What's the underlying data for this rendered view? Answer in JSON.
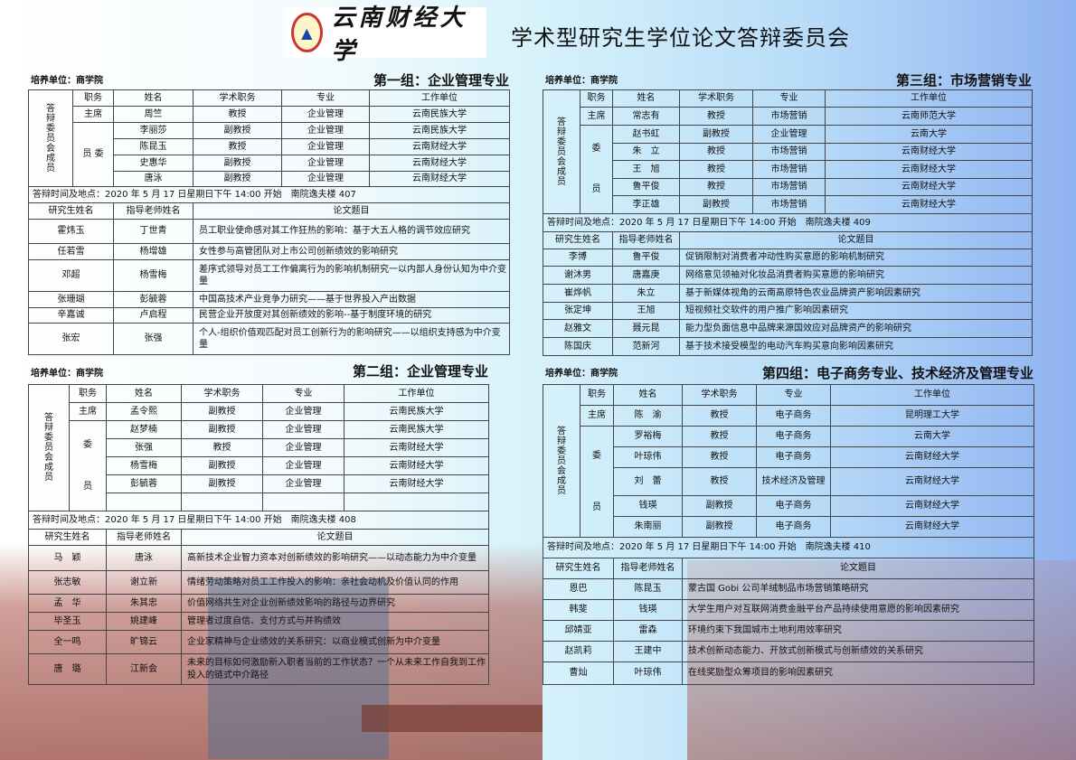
{
  "header": {
    "logo_text": "云南财经大学",
    "title": "学术型研究生学位论文答辩委员会"
  },
  "colors": {
    "seal": "#cc3333",
    "background_left": "#ffffff",
    "background_right": "#8fb2f0"
  },
  "committee_label": "答辩委员会成员",
  "columns": {
    "role": "职务",
    "name": "姓名",
    "rank": "学术职务",
    "major": "专业",
    "org": "工作单位",
    "student": "研究生姓名",
    "advisor": "指导老师姓名",
    "thesis": "论文题目"
  },
  "groups": [
    {
      "unit": "培养单位：商学院",
      "title": "第一组：企业管理专业",
      "member_label": "员 委",
      "chair_label": "主席",
      "members": [
        [
          "周竺",
          "教授",
          "企业管理",
          "云南民族大学"
        ],
        [
          "李丽莎",
          "副教授",
          "企业管理",
          "云南民族大学"
        ],
        [
          "陈昆玉",
          "教授",
          "企业管理",
          "云南财经大学"
        ],
        [
          "史惠华",
          "副教授",
          "企业管理",
          "云南财经大学"
        ],
        [
          "唐泳",
          "副教授",
          "企业管理",
          "云南财经大学"
        ]
      ],
      "time_place": "答辩时间及地点：2020 年 5 月 17 日星期日下午 14:00 开始　南院逸夫楼 407",
      "theses": [
        [
          "霍炜玉",
          "丁世青",
          "员工职业使命感对其工作狂热的影响：基于大五人格的调节效应研究"
        ],
        [
          "任若雪",
          "杨增雄",
          "女性参与高管团队对上市公司创新绩效的影响研究"
        ],
        [
          "邓超",
          "杨雪梅",
          "差序式领导对员工工作偏离行为的影响机制研究一以内部人身份认知为中介变量"
        ],
        [
          "张珊瑚",
          "彭毓蓉",
          "中国高技术产业竞争力研究——基于世界投入产出数据"
        ],
        [
          "辛嘉诚",
          "卢启程",
          "民营企业开放度对其创新绩效的影响--基于制度环境的研究"
        ],
        [
          "张宏",
          "张强",
          "个人-组织价值观匹配对员工创新行为的影响研究——以组织支持感为中介变量"
        ]
      ]
    },
    {
      "unit": "培养单位：商学院",
      "title": "第二组：企业管理专业",
      "member_label": "委员",
      "chair_label": "主席",
      "members": [
        [
          "孟令熙",
          "副教授",
          "企业管理",
          "云南民族大学"
        ],
        [
          "赵梦楠",
          "副教授",
          "企业管理",
          "云南民族大学"
        ],
        [
          "张强",
          "教授",
          "企业管理",
          "云南财经大学"
        ],
        [
          "杨雪梅",
          "副教授",
          "企业管理",
          "云南财经大学"
        ],
        [
          "彭毓蓉",
          "副教授",
          "企业管理",
          "云南财经大学"
        ],
        [
          "",
          "",
          "",
          ""
        ]
      ],
      "time_place": "答辩时间及地点：2020 年 5 月 17 日星期日下午 14:00 开始　南院逸夫楼 408",
      "theses": [
        [
          "马　颖",
          "唐泳",
          "高新技术企业智力资本对创新绩效的影响研究——以动态能力为中介变量"
        ],
        [
          "张志敏",
          "谢立新",
          "情绪劳动策略对员工工作投入的影响：亲社会动机及价值认同的作用"
        ],
        [
          "孟　华",
          "朱其忠",
          "价值网络共生对企业创新绩效影响的路径与边界研究"
        ],
        [
          "毕圣玉",
          "姚建峰",
          "管理者过度自信、支付方式与并购绩效"
        ],
        [
          "全一鸣",
          "旷锦云",
          "企业家精神与企业绩效的关系研究：以商业模式创新为中介变量"
        ],
        [
          "唐　璐",
          "江新会",
          "未来的目标如何激励新入职者当前的工作状态？一个从未来工作自我到工作投入的链式中介路径"
        ]
      ]
    },
    {
      "unit": "培养单位：商学院",
      "title": "第三组：市场营销专业",
      "member_label": "委员",
      "chair_label": "主席",
      "members": [
        [
          "常志有",
          "教授",
          "市场营销",
          "云南师范大学"
        ],
        [
          "赵书虹",
          "副教授",
          "企业管理",
          "云南大学"
        ],
        [
          "朱　立",
          "教授",
          "市场营销",
          "云南财经大学"
        ],
        [
          "王　旭",
          "教授",
          "市场营销",
          "云南财经大学"
        ],
        [
          "鲁平俊",
          "教授",
          "市场营销",
          "云南财经大学"
        ],
        [
          "李正雄",
          "副教授",
          "市场营销",
          "云南财经大学"
        ]
      ],
      "time_place": "答辩时间及地点：2020 年 5 月 17 日星期日下午 14:00 开始　南院逸夫楼 409",
      "theses": [
        [
          "李博",
          "鲁平俊",
          "促销限制对消费者冲动性购买意愿的影响机制研究"
        ],
        [
          "谢沐男",
          "唐嘉庚",
          "网络意见领袖对化妆品消费者购买意愿的影响研究"
        ],
        [
          "崔烨帆",
          "朱立",
          "基于新媒体视角的云南高原特色农业品牌资产影响因素研究"
        ],
        [
          "张定坤",
          "王旭",
          "短视频社交软件的用户推广影响因素研究"
        ],
        [
          "赵雅文",
          "聂元昆",
          "能力型负面信息中品牌来源国效应对品牌资产的影响研究"
        ],
        [
          "陈国庆",
          "范新河",
          "基于技术接受模型的电动汽车购买意向影响因素研究"
        ]
      ]
    },
    {
      "unit": "培养单位：商学院",
      "title": "第四组：电子商务专业、技术经济及管理专业",
      "member_label": "委员",
      "chair_label": "主席",
      "members": [
        [
          "陈　渝",
          "教授",
          "电子商务",
          "昆明理工大学"
        ],
        [
          "罗裕梅",
          "教授",
          "电子商务",
          "云南大学"
        ],
        [
          "叶琼伟",
          "教授",
          "电子商务",
          "云南财经大学"
        ],
        [
          "刘　蕾",
          "教授",
          "技术经济及管理",
          "云南财经大学"
        ],
        [
          "钱瑛",
          "副教授",
          "电子商务",
          "云南财经大学"
        ],
        [
          "朱南丽",
          "副教授",
          "电子商务",
          "云南财经大学"
        ]
      ],
      "time_place": "答辩时间及地点：2020 年 5 月 17 日星期日下午 14:00 开始　南院逸夫楼 410",
      "theses": [
        [
          "恩巴",
          "陈昆玉",
          "蒙古国 Gobi 公司羊绒制品市场营销策略研究"
        ],
        [
          "韩斐",
          "钱瑛",
          "大学生用户对互联网消费金融平台产品持续使用意愿的影响因素研究"
        ],
        [
          "邱婧亚",
          "雷森",
          "环境约束下我国城市土地利用效率研究"
        ],
        [
          "赵凯莉",
          "王建中",
          "技术创新动态能力、开放式创新模式与创新绩效的关系研究"
        ],
        [
          "曹灿",
          "叶琼伟",
          "在线奖励型众筹项目的影响因素研究"
        ]
      ]
    }
  ]
}
